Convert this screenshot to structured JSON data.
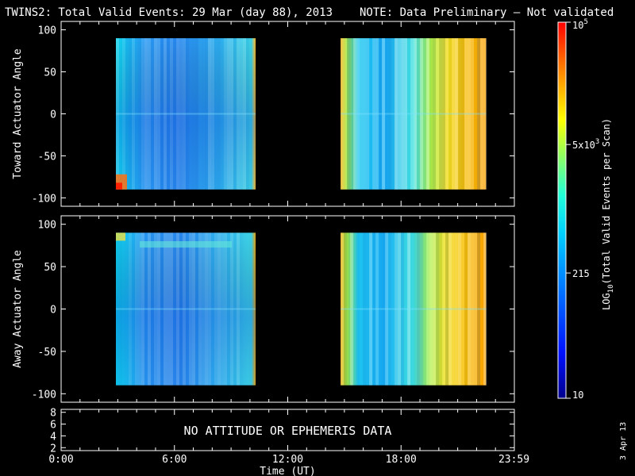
{
  "title": {
    "text": "TWINS2: Total Valid Events: 29 Mar (day  88), 2013",
    "note": "NOTE: Data Preliminary — Not validated",
    "note_color": "#ff1010"
  },
  "chart_data": [
    {
      "type": "heatmap",
      "panel": "top",
      "ylabel": "Toward Actuator Angle",
      "ylim": [
        -110,
        110
      ],
      "yticks": [
        "100",
        "50",
        "0",
        "-50",
        "-100"
      ],
      "ytick_values": [
        100,
        50,
        0,
        -50,
        -100
      ],
      "xlim": [
        0,
        24
      ],
      "data_range_y": [
        -90,
        90
      ],
      "data_blocks_hours": [
        [
          2.9,
          10.3
        ],
        [
          14.8,
          22.5
        ]
      ],
      "colorscale": "log10",
      "grid": false
    },
    {
      "type": "heatmap",
      "panel": "middle",
      "ylabel": "Away Actuator Angle",
      "ylim": [
        -110,
        110
      ],
      "yticks": [
        "100",
        "50",
        "0",
        "-50",
        "-100"
      ],
      "ytick_values": [
        100,
        50,
        0,
        -50,
        -100
      ],
      "xlim": [
        0,
        24
      ],
      "data_range_y": [
        -90,
        90
      ],
      "data_blocks_hours": [
        [
          2.9,
          10.3
        ],
        [
          14.8,
          22.5
        ]
      ],
      "colorscale": "log10",
      "grid": false
    },
    {
      "type": "line",
      "panel": "bottom",
      "ylabel": "",
      "ylim": [
        1.5,
        8.5
      ],
      "yticks": [
        "8",
        "6",
        "4",
        "2"
      ],
      "ytick_values": [
        8,
        6,
        4,
        2
      ],
      "xlim": [
        0,
        24
      ],
      "message": "NO ATTITUDE OR EPHEMERIS DATA",
      "xticks": [
        "0:00",
        "6:00",
        "12:00",
        "18:00",
        "23:59"
      ],
      "xtick_values": [
        0,
        6,
        12,
        18,
        23.98
      ],
      "xlabel": "Time (UT)"
    }
  ],
  "colorbar": {
    "label_prefix": "LOG",
    "label_sub": "10",
    "label_rest": "(Total Valid Events per Scan)",
    "ticks": [
      {
        "base": "10",
        "exp": "5",
        "value": 100000
      },
      {
        "base": "5x10",
        "exp": "3",
        "value": 5000
      },
      {
        "base": "215",
        "exp": "",
        "value": 215
      },
      {
        "base": "10",
        "exp": "",
        "value": 10
      }
    ],
    "range": [
      10,
      100000
    ]
  },
  "footer_date": "3 Apr 13"
}
